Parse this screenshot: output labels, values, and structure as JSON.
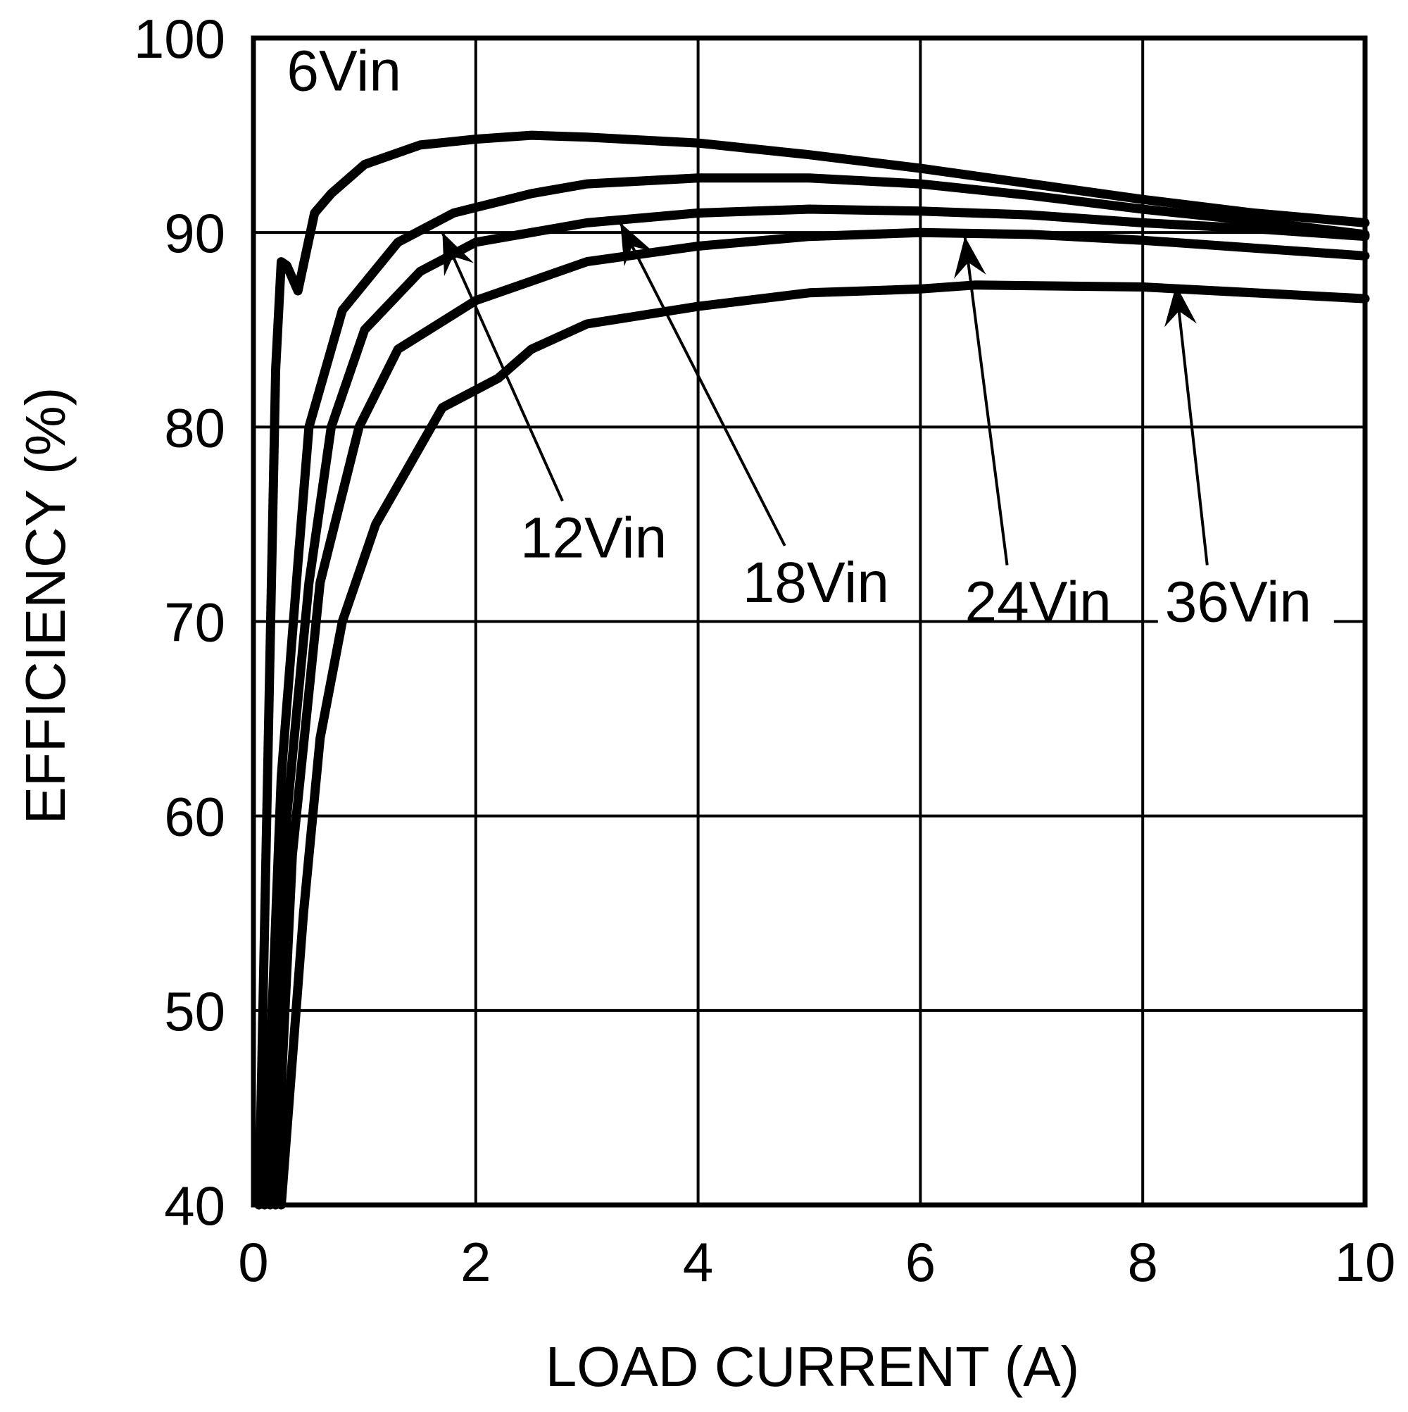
{
  "chart_data": {
    "type": "line",
    "title": "",
    "xlabel": "LOAD CURRENT (A)",
    "ylabel": "EFFICIENCY (%)",
    "xlim": [
      0,
      10
    ],
    "ylim": [
      40,
      100
    ],
    "x_ticks": [
      "0",
      "2",
      "4",
      "6",
      "8",
      "10"
    ],
    "y_ticks": [
      "40",
      "50",
      "60",
      "70",
      "80",
      "90",
      "100"
    ],
    "grid": true,
    "legend_position": "inline annotations with arrows",
    "series": [
      {
        "name": "6Vin",
        "x": [
          0.05,
          0.2,
          0.25,
          0.3,
          0.4,
          0.55,
          0.7,
          1.0,
          1.5,
          2.0,
          2.5,
          3.0,
          4.0,
          5.0,
          6.0,
          7.0,
          8.0,
          9.0,
          10.0
        ],
        "y": [
          40,
          83,
          88.5,
          88.3,
          87,
          91,
          92,
          93.5,
          94.5,
          94.8,
          95,
          94.9,
          94.6,
          94.0,
          93.3,
          92.5,
          91.7,
          91.0,
          90.5
        ]
      },
      {
        "name": "12Vin",
        "x": [
          0.1,
          0.25,
          0.4,
          0.5,
          0.8,
          1.3,
          1.8,
          2.5,
          3.0,
          4.0,
          5.0,
          6.0,
          7.0,
          8.0,
          9.0,
          10.0
        ],
        "y": [
          40,
          62,
          73,
          80,
          86,
          89.5,
          91,
          92,
          92.5,
          92.8,
          92.8,
          92.5,
          91.9,
          91.2,
          90.6,
          89.9
        ]
      },
      {
        "name": "18Vin",
        "x": [
          0.15,
          0.3,
          0.5,
          0.7,
          1.0,
          1.5,
          2.0,
          3.0,
          4.0,
          5.0,
          6.0,
          7.0,
          8.0,
          9.0,
          10.0
        ],
        "y": [
          40,
          60,
          72,
          80,
          85,
          88,
          89.5,
          90.5,
          91,
          91.2,
          91.1,
          90.9,
          90.5,
          90.2,
          89.8
        ]
      },
      {
        "name": "24Vin",
        "x": [
          0.2,
          0.35,
          0.6,
          0.95,
          1.3,
          2.0,
          2.5,
          3.0,
          4.0,
          5.0,
          6.0,
          7.0,
          8.0,
          9.0,
          10.0
        ],
        "y": [
          40,
          58,
          72,
          80,
          84,
          86.5,
          87.5,
          88.5,
          89.3,
          89.8,
          90.0,
          89.9,
          89.6,
          89.2,
          88.8
        ]
      },
      {
        "name": "36Vin",
        "x": [
          0.25,
          0.45,
          0.6,
          0.8,
          1.1,
          1.4,
          1.7,
          2.2,
          2.5,
          3.0,
          4.0,
          5.0,
          6.0,
          6.5,
          8.0,
          9.0,
          10.0
        ],
        "y": [
          40,
          55,
          64,
          70,
          75,
          78,
          81,
          82.5,
          84,
          85.3,
          86.2,
          86.9,
          87.1,
          87.3,
          87.2,
          86.9,
          86.6
        ]
      }
    ],
    "annotations": [
      {
        "text": "6Vin",
        "x": 0.3,
        "y": 97.3
      },
      {
        "text": "12Vin",
        "x": 2.4,
        "y": 73.3,
        "arrow_to": [
          1.7,
          90.0
        ]
      },
      {
        "text": "18Vin",
        "x": 4.4,
        "y": 71.0,
        "arrow_to": [
          3.3,
          90.5
        ]
      },
      {
        "text": "24Vin",
        "x": 6.4,
        "y": 70.0,
        "arrow_to": [
          6.4,
          89.8
        ]
      },
      {
        "text": "36Vin",
        "x": 8.2,
        "y": 70.0,
        "arrow_to": [
          8.3,
          87.3
        ]
      }
    ]
  },
  "labels": {
    "xlabel": "LOAD CURRENT (A)",
    "ylabel": "EFFICIENCY (%)",
    "series_6": "6Vin",
    "series_12": "12Vin",
    "series_18": "18Vin",
    "series_24": "24Vin",
    "series_36": "36Vin"
  },
  "colors": {
    "line": "#000000",
    "background": "#ffffff"
  }
}
